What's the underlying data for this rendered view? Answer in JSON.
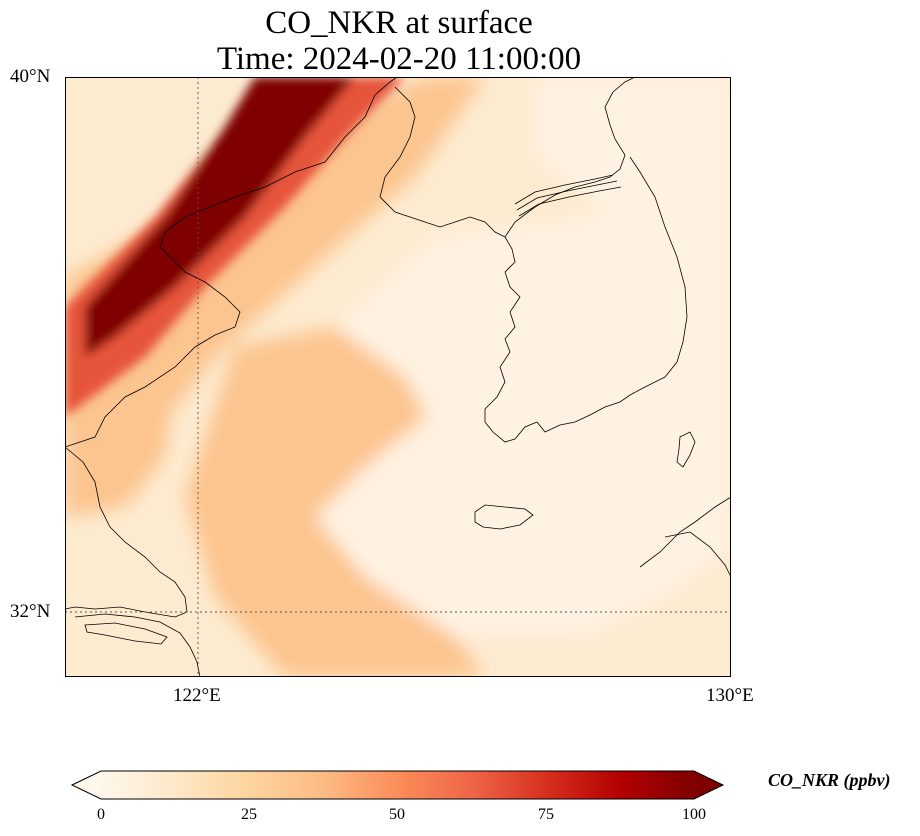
{
  "title": {
    "line1": "CO_NKR at surface",
    "line2": "Time: 2024-02-20 11:00:00"
  },
  "axes": {
    "lat_labels": [
      "40°N",
      "32°N"
    ],
    "lon_labels": [
      "122°E",
      "130°E"
    ],
    "lat_range": [
      31,
      40
    ],
    "lon_range": [
      120,
      130
    ],
    "gridlines": {
      "lats": [
        32
      ],
      "lons": [
        122
      ],
      "style": "dotted"
    }
  },
  "colorbar": {
    "label": "CO_NKR (ppbv)",
    "ticks": [
      "0",
      "25",
      "50",
      "75",
      "100"
    ],
    "range": [
      0,
      100
    ],
    "extend": "both",
    "colormap": "OrRd",
    "stops": [
      "#fff7ec",
      "#fee8c8",
      "#fdd49e",
      "#fdbb84",
      "#fc8d59",
      "#ef6548",
      "#d7301f",
      "#b30000",
      "#7f0000"
    ]
  },
  "map_colors": {
    "background": "#fdebd0",
    "low": "#fff2e2",
    "mid": "#fcc48e",
    "high": "#e6553a",
    "peak": "#7f0000",
    "coastline": "#000000"
  }
}
